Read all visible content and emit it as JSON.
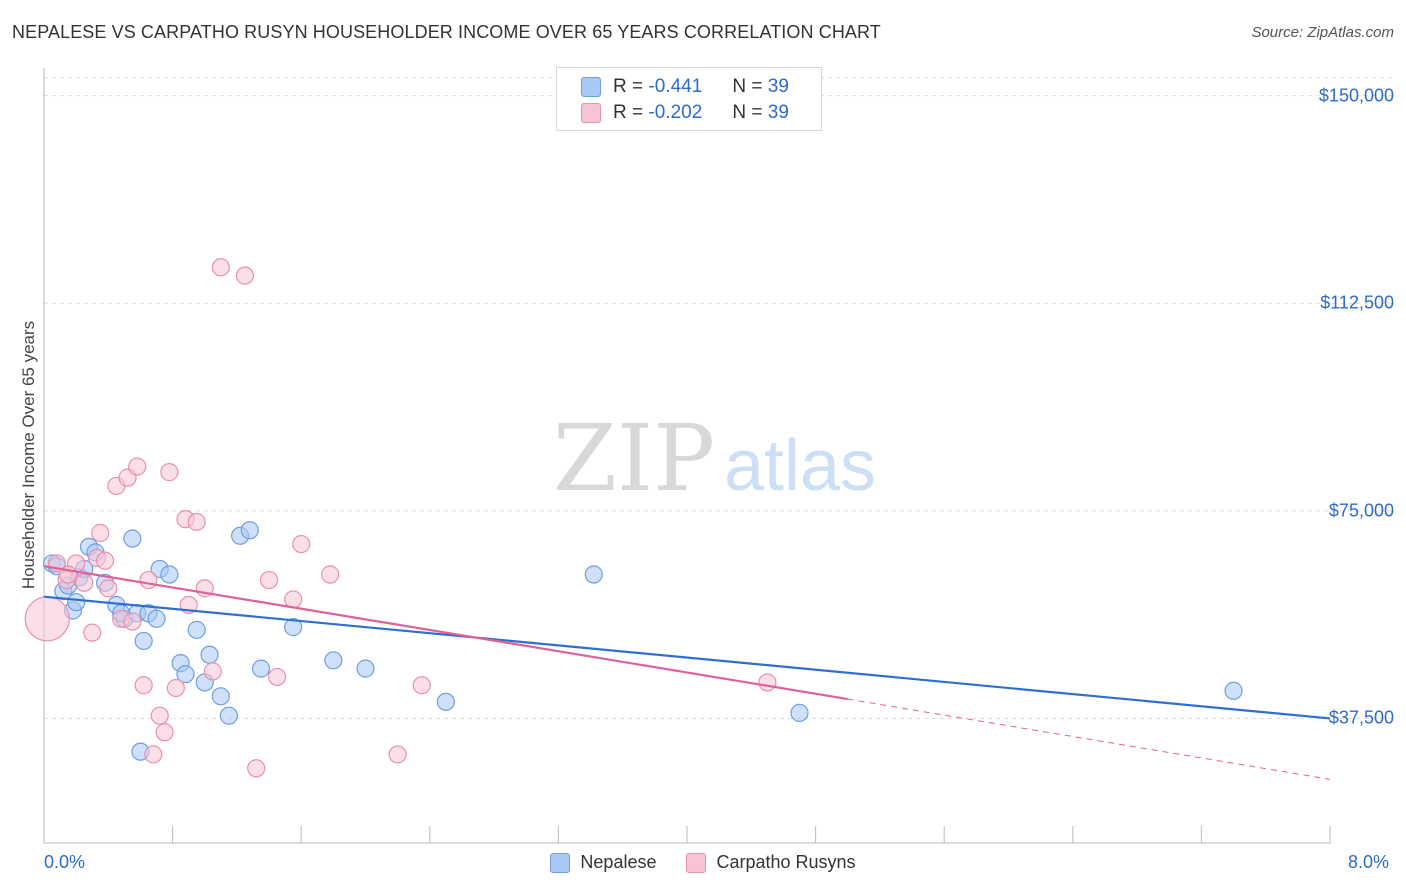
{
  "title": "NEPALESE VS CARPATHO RUSYN HOUSEHOLDER INCOME OVER 65 YEARS CORRELATION CHART",
  "source": "Source: ZipAtlas.com",
  "watermark": {
    "zip": "ZIP",
    "atlas": "atlas"
  },
  "legend_top": {
    "rows": [
      {
        "r_label": "R =",
        "r_value": "-0.441",
        "n_label": "N =",
        "n_value": "39",
        "color": "#a8c8f5",
        "border": "#6f9fe0"
      },
      {
        "r_label": "R =",
        "r_value": "-0.202",
        "n_label": "N =",
        "n_value": "39",
        "color": "#f8c4d4",
        "border": "#e890ad"
      }
    ]
  },
  "chart_data": {
    "type": "scatter",
    "title": "NEPALESE VS CARPATHO RUSYN HOUSEHOLDER INCOME OVER 65 YEARS CORRELATION CHART",
    "xlabel": "",
    "ylabel": "Householder Income Over 65 years",
    "xlim": [
      0.0,
      8.0
    ],
    "ylim": [
      15000,
      155000
    ],
    "x_tick_labels": [
      "0.0%",
      "8.0%"
    ],
    "y_ticks": [
      37500,
      75000,
      112500,
      150000
    ],
    "y_tick_labels": [
      "$37,500",
      "$75,000",
      "$112,500",
      "$150,000"
    ],
    "series": [
      {
        "name": "Nepalese",
        "color": "#a8c8f5",
        "stroke": "#6f9fe0",
        "line_color": "#2e6fd0",
        "trend": {
          "x0": 0.0,
          "y0": 59500,
          "x1": 8.0,
          "y1": 37500
        },
        "points": [
          [
            0.05,
            65500
          ],
          [
            0.12,
            60500
          ],
          [
            0.15,
            61500
          ],
          [
            0.18,
            57000
          ],
          [
            0.2,
            58500
          ],
          [
            0.22,
            63000
          ],
          [
            0.28,
            68500
          ],
          [
            0.32,
            67500
          ],
          [
            0.38,
            62000
          ],
          [
            0.45,
            58000
          ],
          [
            0.5,
            55500
          ],
          [
            0.55,
            70000
          ],
          [
            0.58,
            56500
          ],
          [
            0.62,
            51500
          ],
          [
            0.65,
            56500
          ],
          [
            0.7,
            55500
          ],
          [
            0.72,
            64500
          ],
          [
            0.78,
            63500
          ],
          [
            0.85,
            47500
          ],
          [
            0.88,
            45500
          ],
          [
            0.95,
            53500
          ],
          [
            1.03,
            49000
          ],
          [
            1.1,
            41500
          ],
          [
            1.15,
            38000
          ],
          [
            1.22,
            70500
          ],
          [
            1.28,
            71500
          ],
          [
            1.35,
            46500
          ],
          [
            1.55,
            54000
          ],
          [
            1.8,
            48000
          ],
          [
            2.0,
            46500
          ],
          [
            2.5,
            40500
          ],
          [
            3.42,
            63500
          ],
          [
            4.7,
            38500
          ],
          [
            7.4,
            42500
          ],
          [
            0.6,
            31500
          ],
          [
            0.08,
            65000
          ],
          [
            0.25,
            64500
          ],
          [
            0.48,
            56500
          ],
          [
            1.0,
            44000
          ]
        ]
      },
      {
        "name": "Carpatho Rusyns",
        "color": "#f8c4d4",
        "stroke": "#e890ad",
        "line_color": "#e0609a",
        "trend": {
          "x0": 0.0,
          "y0": 65000,
          "x1": 5.0,
          "y1": 41000
        },
        "trend_dashed": {
          "x0": 5.0,
          "y0": 41000,
          "x1": 8.0,
          "y1": 26500
        },
        "points": [
          [
            0.02,
            55500
          ],
          [
            0.08,
            65500
          ],
          [
            0.14,
            62500
          ],
          [
            0.2,
            65500
          ],
          [
            0.25,
            62000
          ],
          [
            0.3,
            53000
          ],
          [
            0.33,
            66500
          ],
          [
            0.38,
            66000
          ],
          [
            0.4,
            61000
          ],
          [
            0.45,
            79500
          ],
          [
            0.48,
            55500
          ],
          [
            0.52,
            81000
          ],
          [
            0.55,
            55000
          ],
          [
            0.58,
            83000
          ],
          [
            0.62,
            43500
          ],
          [
            0.65,
            62500
          ],
          [
            0.68,
            31000
          ],
          [
            0.72,
            38000
          ],
          [
            0.75,
            35000
          ],
          [
            0.78,
            82000
          ],
          [
            0.82,
            43000
          ],
          [
            0.88,
            73500
          ],
          [
            0.9,
            58000
          ],
          [
            0.95,
            73000
          ],
          [
            1.0,
            61000
          ],
          [
            1.05,
            46000
          ],
          [
            1.1,
            119000
          ],
          [
            1.25,
            117500
          ],
          [
            1.32,
            28500
          ],
          [
            1.4,
            62500
          ],
          [
            1.45,
            45000
          ],
          [
            1.55,
            59000
          ],
          [
            1.6,
            69000
          ],
          [
            1.78,
            63500
          ],
          [
            2.2,
            31000
          ],
          [
            2.35,
            43500
          ],
          [
            4.5,
            44000
          ],
          [
            0.15,
            63500
          ],
          [
            0.35,
            71000
          ]
        ]
      }
    ]
  }
}
